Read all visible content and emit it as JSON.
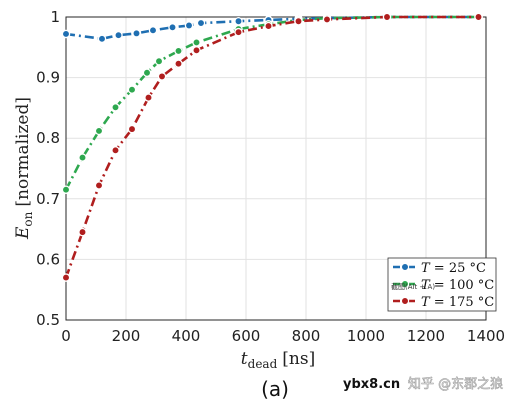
{
  "chart_data": {
    "type": "line",
    "xlabel": "t_dead [ns]",
    "xlabel_main": "t",
    "xlabel_sub": "dead",
    "xlabel_unit": "[ns]",
    "ylabel": "E_on [normalized]",
    "ylabel_main": "E",
    "ylabel_sub": "on",
    "ylabel_unit": "[normalized]",
    "xlim": [
      0,
      1400
    ],
    "ylim": [
      0.5,
      1.0
    ],
    "xticks": [
      0,
      200,
      400,
      600,
      800,
      1000,
      1200,
      1400
    ],
    "yticks": [
      0.5,
      0.6,
      0.7,
      0.8,
      0.9,
      1.0
    ],
    "ytick_labels": [
      "0.5",
      "0.6",
      "0.7",
      "0.8",
      "0.9",
      "1"
    ],
    "grid": true,
    "legend_position": "bottom-right",
    "series": [
      {
        "name": "T = 25 °C",
        "color": "#1f6fb2",
        "x": [
          0,
          120,
          175,
          235,
          290,
          355,
          410,
          450,
          575,
          675,
          775,
          870,
          1070,
          1375
        ],
        "y": [
          0.972,
          0.964,
          0.97,
          0.973,
          0.978,
          0.983,
          0.986,
          0.99,
          0.993,
          0.995,
          0.997,
          0.998,
          1.0,
          1.0
        ]
      },
      {
        "name": "T = 100 °C",
        "color": "#2ea84f",
        "x": [
          0,
          55,
          110,
          165,
          220,
          270,
          310,
          375,
          435,
          575,
          675,
          775,
          870,
          1070,
          1375
        ],
        "y": [
          0.715,
          0.768,
          0.812,
          0.851,
          0.88,
          0.908,
          0.927,
          0.944,
          0.958,
          0.98,
          0.988,
          0.995,
          0.998,
          1.0,
          1.0
        ]
      },
      {
        "name": "T = 175 °C",
        "color": "#b01e1e",
        "x": [
          0,
          55,
          110,
          165,
          220,
          275,
          320,
          375,
          435,
          575,
          675,
          775,
          870,
          1070,
          1375
        ],
        "y": [
          0.57,
          0.645,
          0.722,
          0.78,
          0.815,
          0.867,
          0.902,
          0.923,
          0.945,
          0.975,
          0.985,
          0.993,
          0.996,
          1.0,
          1.0
        ]
      }
    ],
    "legend": [
      {
        "prefix": "T",
        "rest": " = 25 °C"
      },
      {
        "prefix": "T",
        "rest": " = 100 °C"
      },
      {
        "prefix": "T",
        "rest": " = 175 °C"
      }
    ]
  },
  "caption": "(a)",
  "watermarks": {
    "screenshot_tip": "截图(Alt + A)",
    "site": "ybx8.cn",
    "author": "知乎 @东郡之狼"
  }
}
